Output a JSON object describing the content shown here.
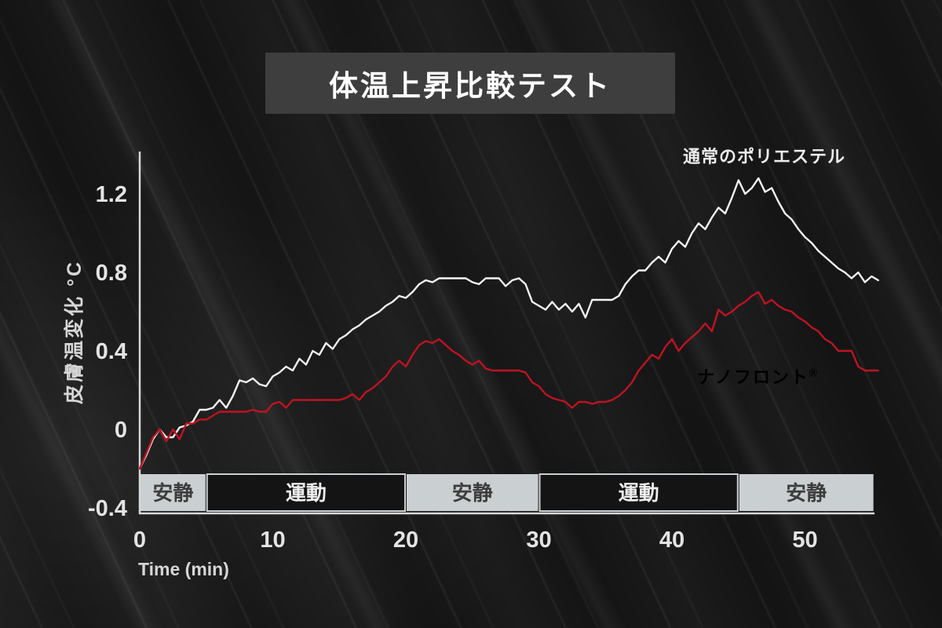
{
  "title": "体温上昇比較テスト",
  "y_axis_label": "皮膚温変化 °C",
  "x_axis_label": "Time (min)",
  "series_labels": {
    "polyester": "通常のポリエステル",
    "nanofront": "ナノフロント",
    "nanofront_sup": "®"
  },
  "colors": {
    "background": "#1b1b1c",
    "title_box": "#3e3e3e",
    "axis": "#d8d8d8",
    "tick_text": "#e4e4e4",
    "polyester_line": "#f3f3f3",
    "nanofront_line": "#c01320",
    "band_light": "#cacfd2",
    "band_dark": "#141414",
    "band_light_text": "#3d3d3d",
    "band_dark_text": "#ededed"
  },
  "chart_data": {
    "type": "line",
    "title": "体温上昇比較テスト",
    "xlabel": "Time (min)",
    "ylabel": "皮膚温変化 °C",
    "xlim": [
      0,
      55.5
    ],
    "ylim": [
      -0.4,
      1.4
    ],
    "x_ticks": [
      0,
      10,
      20,
      30,
      40,
      50
    ],
    "y_ticks": [
      -0.4,
      0,
      0.4,
      0.8,
      1.2
    ],
    "grid": false,
    "legend_position": "inline-labels",
    "x_start": 0,
    "x_step": 0.5,
    "series": [
      {
        "name": "通常のポリエステル",
        "color": "#f3f3f3",
        "values": [
          -0.2,
          -0.13,
          -0.05,
          0.0,
          -0.04,
          -0.04,
          0.01,
          0.02,
          0.04,
          0.1,
          0.1,
          0.11,
          0.15,
          0.11,
          0.17,
          0.25,
          0.24,
          0.26,
          0.23,
          0.22,
          0.27,
          0.29,
          0.32,
          0.3,
          0.36,
          0.33,
          0.4,
          0.38,
          0.44,
          0.41,
          0.46,
          0.48,
          0.51,
          0.53,
          0.56,
          0.58,
          0.6,
          0.63,
          0.65,
          0.68,
          0.67,
          0.7,
          0.74,
          0.76,
          0.75,
          0.77,
          0.77,
          0.77,
          0.77,
          0.77,
          0.75,
          0.74,
          0.77,
          0.77,
          0.77,
          0.73,
          0.76,
          0.77,
          0.74,
          0.65,
          0.63,
          0.61,
          0.65,
          0.61,
          0.64,
          0.6,
          0.64,
          0.57,
          0.66,
          0.66,
          0.66,
          0.66,
          0.68,
          0.74,
          0.78,
          0.81,
          0.81,
          0.85,
          0.88,
          0.85,
          0.92,
          0.96,
          0.93,
          1.0,
          1.05,
          1.02,
          1.08,
          1.13,
          1.1,
          1.18,
          1.27,
          1.2,
          1.23,
          1.28,
          1.21,
          1.23,
          1.16,
          1.1,
          1.07,
          1.02,
          0.98,
          0.95,
          0.91,
          0.88,
          0.85,
          0.82,
          0.8,
          0.77,
          0.8,
          0.75,
          0.78,
          0.76
        ]
      },
      {
        "name": "ナノフロント®",
        "color": "#c01320",
        "values": [
          -0.2,
          -0.12,
          -0.04,
          0.0,
          -0.06,
          0.0,
          -0.05,
          0.03,
          0.03,
          0.05,
          0.05,
          0.07,
          0.09,
          0.09,
          0.09,
          0.09,
          0.09,
          0.1,
          0.09,
          0.09,
          0.13,
          0.14,
          0.11,
          0.15,
          0.15,
          0.15,
          0.15,
          0.15,
          0.15,
          0.15,
          0.15,
          0.16,
          0.18,
          0.15,
          0.19,
          0.21,
          0.24,
          0.27,
          0.32,
          0.35,
          0.32,
          0.38,
          0.43,
          0.45,
          0.44,
          0.46,
          0.43,
          0.4,
          0.38,
          0.35,
          0.33,
          0.35,
          0.31,
          0.3,
          0.3,
          0.3,
          0.3,
          0.3,
          0.29,
          0.24,
          0.22,
          0.18,
          0.16,
          0.15,
          0.14,
          0.11,
          0.14,
          0.14,
          0.13,
          0.14,
          0.14,
          0.15,
          0.17,
          0.2,
          0.24,
          0.3,
          0.34,
          0.38,
          0.36,
          0.42,
          0.46,
          0.4,
          0.44,
          0.47,
          0.5,
          0.54,
          0.5,
          0.61,
          0.58,
          0.6,
          0.63,
          0.65,
          0.68,
          0.7,
          0.64,
          0.66,
          0.63,
          0.61,
          0.6,
          0.57,
          0.55,
          0.52,
          0.5,
          0.46,
          0.44,
          0.4,
          0.4,
          0.4,
          0.32,
          0.3,
          0.3,
          0.3
        ]
      }
    ],
    "activity_bands": [
      {
        "label": "安静",
        "start": 0,
        "end": 5,
        "style": "rest"
      },
      {
        "label": "運動",
        "start": 5,
        "end": 20,
        "style": "exercise"
      },
      {
        "label": "安静",
        "start": 20,
        "end": 30,
        "style": "rest"
      },
      {
        "label": "運動",
        "start": 30,
        "end": 45,
        "style": "exercise"
      },
      {
        "label": "安静",
        "start": 45,
        "end": 55.2,
        "style": "rest"
      }
    ]
  }
}
